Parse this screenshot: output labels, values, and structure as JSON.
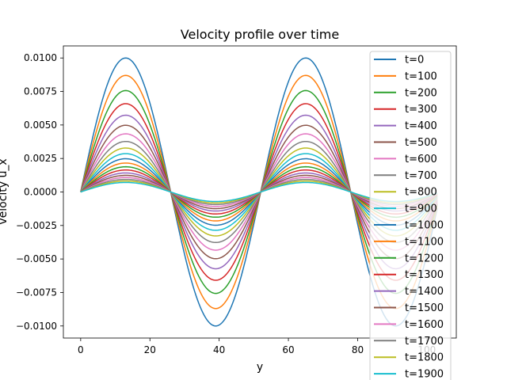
{
  "chart_data": {
    "type": "line",
    "title": "Velocity profile over time",
    "xlabel": "y",
    "ylabel": "velocity u_x",
    "xlim": [
      -5,
      108.5
    ],
    "ylim": [
      -0.0109,
      0.0109
    ],
    "xticks": [
      0,
      20,
      40,
      60,
      80,
      100
    ],
    "xtick_labels": [
      "0",
      "20",
      "40",
      "60",
      "80",
      "100"
    ],
    "yticks": [
      -0.01,
      -0.0075,
      -0.005,
      -0.0025,
      0,
      0.0025,
      0.005,
      0.0075,
      0.01
    ],
    "ytick_labels": [
      "−0.0100",
      "−0.0075",
      "−0.0050",
      "−0.0025",
      "0.0000",
      "0.0025",
      "0.0050",
      "0.0075",
      "0.0100"
    ],
    "grid": false,
    "legend_position": "right",
    "profile": {
      "shape": "sine",
      "amplitude_t0": 0.01,
      "period_y": 52,
      "y_range": [
        0,
        103
      ],
      "decay_per_100_steps": 0.87,
      "time_step": 100,
      "n_series": 20
    },
    "series": [
      {
        "name": "t=0",
        "color": "#1f77b4",
        "amplitude": 0.01
      },
      {
        "name": "t=100",
        "color": "#ff7f0e",
        "amplitude": 0.0087
      },
      {
        "name": "t=200",
        "color": "#2ca02c",
        "amplitude": 0.00757
      },
      {
        "name": "t=300",
        "color": "#d62728",
        "amplitude": 0.00659
      },
      {
        "name": "t=400",
        "color": "#9467bd",
        "amplitude": 0.00573
      },
      {
        "name": "t=500",
        "color": "#8c564b",
        "amplitude": 0.00498
      },
      {
        "name": "t=600",
        "color": "#e377c2",
        "amplitude": 0.00434
      },
      {
        "name": "t=700",
        "color": "#7f7f7f",
        "amplitude": 0.00377
      },
      {
        "name": "t=800",
        "color": "#bcbd22",
        "amplitude": 0.00328
      },
      {
        "name": "t=900",
        "color": "#17becf",
        "amplitude": 0.00286
      },
      {
        "name": "t=1000",
        "color": "#1f77b4",
        "amplitude": 0.00248
      },
      {
        "name": "t=1100",
        "color": "#ff7f0e",
        "amplitude": 0.00216
      },
      {
        "name": "t=1200",
        "color": "#2ca02c",
        "amplitude": 0.00188
      },
      {
        "name": "t=1300",
        "color": "#d62728",
        "amplitude": 0.00164
      },
      {
        "name": "t=1400",
        "color": "#9467bd",
        "amplitude": 0.00142
      },
      {
        "name": "t=1500",
        "color": "#8c564b",
        "amplitude": 0.00124
      },
      {
        "name": "t=1600",
        "color": "#e377c2",
        "amplitude": 0.00108
      },
      {
        "name": "t=1700",
        "color": "#7f7f7f",
        "amplitude": 0.00094
      },
      {
        "name": "t=1800",
        "color": "#bcbd22",
        "amplitude": 0.00082
      },
      {
        "name": "t=1900",
        "color": "#17becf",
        "amplitude": 0.00071
      }
    ]
  }
}
